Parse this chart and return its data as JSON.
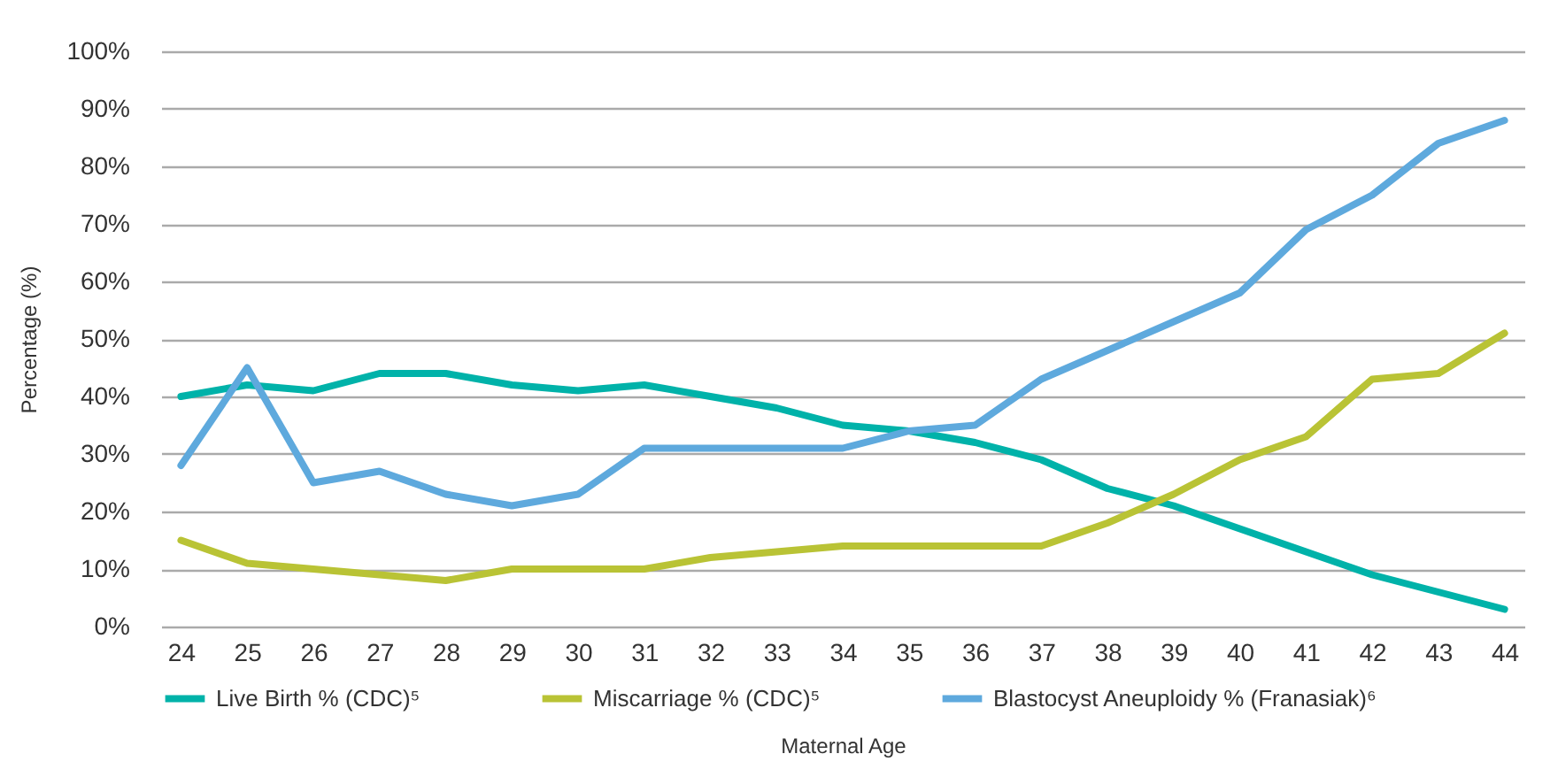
{
  "chart_data": {
    "type": "line",
    "xlabel": "Maternal Age",
    "ylabel": "Percentage (%)",
    "categories": [
      "24",
      "25",
      "26",
      "27",
      "28",
      "29",
      "30",
      "31",
      "32",
      "33",
      "34",
      "35",
      "36",
      "37",
      "38",
      "39",
      "40",
      "41",
      "42",
      "43",
      "44"
    ],
    "series": [
      {
        "name": "Live Birth % (CDC)⁵",
        "color": "#00b2a9",
        "values": [
          40,
          42,
          41,
          44,
          44,
          42,
          41,
          42,
          40,
          38,
          35,
          34,
          32,
          29,
          24,
          21,
          17,
          13,
          9,
          6,
          3
        ]
      },
      {
        "name": "Miscarriage % (CDC)⁵",
        "color": "#b9c335",
        "values": [
          15,
          11,
          10,
          9,
          8,
          10,
          10,
          10,
          12,
          13,
          14,
          14,
          14,
          14,
          18,
          23,
          29,
          33,
          43,
          44,
          51
        ]
      },
      {
        "name": "Blastocyst Aneuploidy % (Franasiak)⁶",
        "color": "#5ea9dd",
        "values": [
          28,
          45,
          25,
          27,
          23,
          21,
          23,
          31,
          31,
          31,
          31,
          34,
          35,
          43,
          48,
          53,
          58,
          69,
          75,
          84,
          88
        ]
      }
    ],
    "ylim": [
      0,
      100
    ],
    "yticks": [
      {
        "value": 0,
        "label": "0%"
      },
      {
        "value": 10,
        "label": "10%"
      },
      {
        "value": 20,
        "label": "20%"
      },
      {
        "value": 30,
        "label": "30%"
      },
      {
        "value": 40,
        "label": "40%"
      },
      {
        "value": 50,
        "label": "50%"
      },
      {
        "value": 60,
        "label": "60%"
      },
      {
        "value": 70,
        "label": "70%"
      },
      {
        "value": 80,
        "label": "80%"
      },
      {
        "value": 90,
        "label": "90%"
      },
      {
        "value": 100,
        "label": "100%"
      }
    ],
    "grid": "y",
    "legend": "bottom",
    "marker": "none",
    "line_style": "solid"
  }
}
